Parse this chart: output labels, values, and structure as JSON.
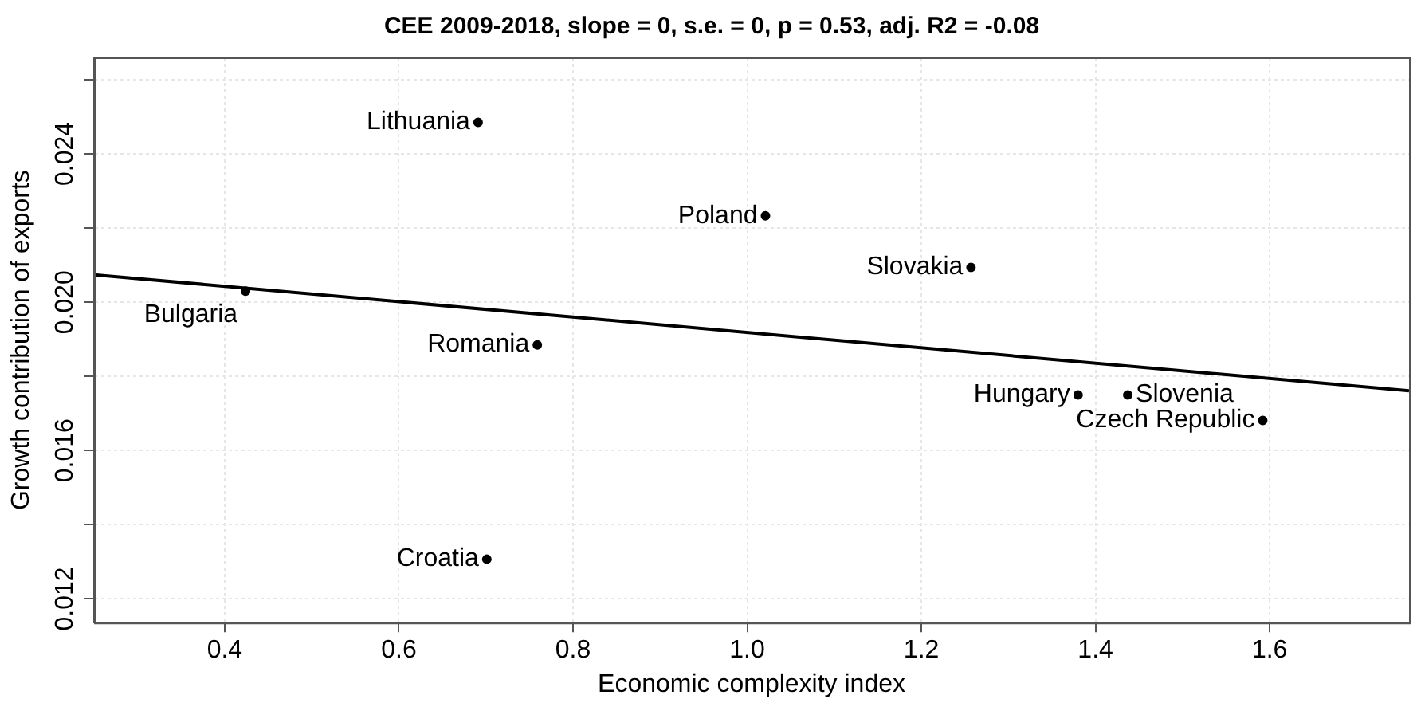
{
  "chart_data": {
    "type": "scatter",
    "title": "CEE 2009-2018, slope = 0, s.e. = 0, p = 0.53, adj. R2 = -0.08",
    "xlabel": "Economic complexity index",
    "ylabel": "Growth contribution of exports",
    "x": [
      0.691,
      1.021,
      1.257,
      0.424,
      0.759,
      0.701,
      1.38,
      1.437,
      1.592
    ],
    "series": [
      {
        "color": "#000000",
        "marker": "circle",
        "values": [
          0.02485,
          0.02233,
          0.02094,
          0.0203,
          0.01885,
          0.01307,
          0.0175,
          0.0175,
          0.01681
        ]
      },
      {
        "type": "line",
        "color": "#000000",
        "x": [
          0.25,
          1.76
        ],
        "values": [
          0.02074,
          0.01761
        ]
      }
    ],
    "annotations": [
      {
        "text": "Lithuania",
        "x": 0.691,
        "y": 0.02485
      },
      {
        "text": "Poland",
        "x": 1.021,
        "y": 0.02233
      },
      {
        "text": "Slovakia",
        "x": 1.257,
        "y": 0.02094
      },
      {
        "text": "Bulgaria",
        "x": 0.424,
        "y": 0.0203
      },
      {
        "text": "Romania",
        "x": 0.759,
        "y": 0.01885
      },
      {
        "text": "Croatia",
        "x": 0.701,
        "y": 0.01307
      },
      {
        "text": "Hungary",
        "x": 1.38,
        "y": 0.0175
      },
      {
        "text": "Slovenia",
        "x": 1.437,
        "y": 0.0175
      },
      {
        "text": "Czech Republic",
        "x": 1.592,
        "y": 0.01681
      }
    ],
    "xlim": [
      0.25,
      1.76
    ],
    "ylim": [
      0.01136,
      0.0266
    ],
    "xticks": [
      0.4,
      0.6,
      0.8,
      {
        "value": 1,
        "label": "1.0"
      },
      1.2,
      1.4,
      1.6
    ],
    "yticks": [
      0.012,
      {
        "value": 0.014,
        "label": null
      },
      0.016,
      {
        "value": 0.018,
        "label": null
      },
      {
        "value": 0.02,
        "label": "0.020"
      },
      {
        "value": 0.022,
        "label": null
      },
      0.024,
      {
        "value": 0.026,
        "label": null
      }
    ],
    "grid": true,
    "legend": false
  }
}
